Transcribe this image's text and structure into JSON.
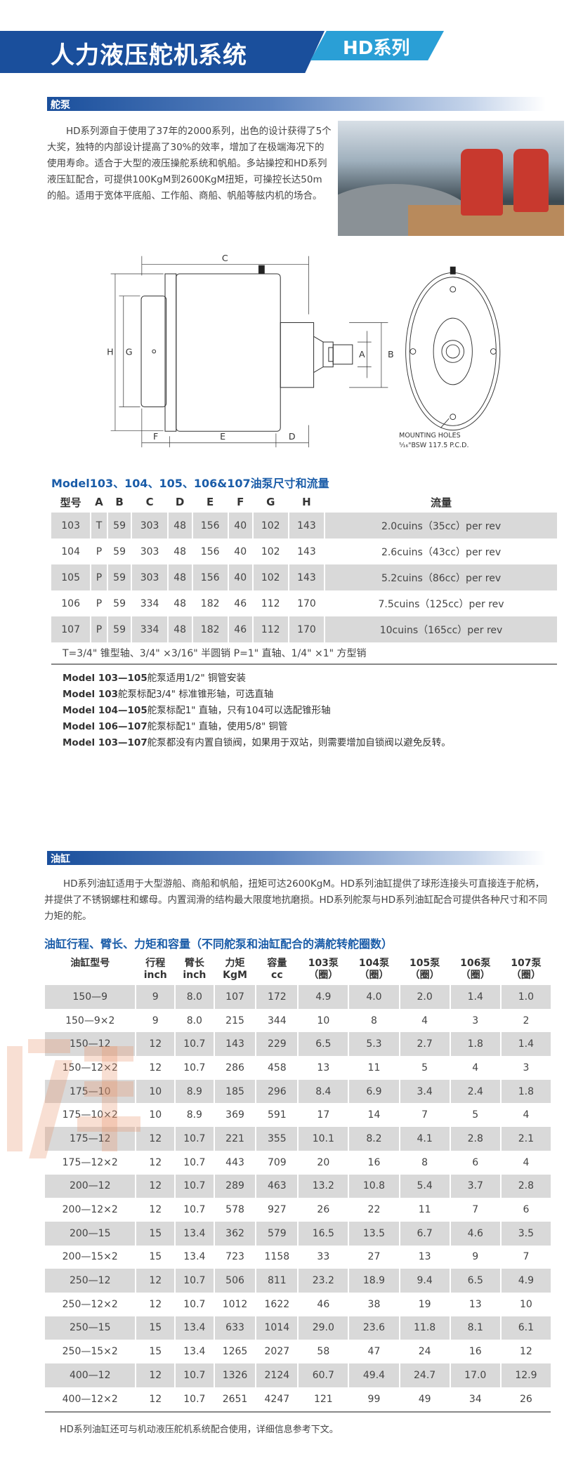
{
  "header": {
    "title": "人力液压舵机系统",
    "series": "HD系列"
  },
  "pump_section": {
    "heading": "舵泵",
    "paragraph": "HD系列源自于使用了37年的2000系列，出色的设计获得了5个大奖，独特的内部设计提高了30%的效率，增加了在极端海况下的使用寿命。适合于大型的液压操舵系统和帆船。多站操控和HD系列液压缸配合，可提供100KgM到2600KgM扭矩，可操控长达50m的船。适用于宽体平底船、工作船、商船、帆船等舷内机的场合。",
    "drawing": {
      "labels": [
        "C",
        "H",
        "G",
        "F",
        "E",
        "D",
        "A",
        "B"
      ],
      "mounting_note_1": "MOUNTING HOLES",
      "mounting_note_2": "⁵⁄₁₆\"BSW 117.5 P.C.D."
    },
    "table_title": "Model103、104、105、106&107油泵尺寸和流量",
    "table": {
      "headers": [
        "型号",
        "A",
        "B",
        "C",
        "D",
        "E",
        "F",
        "G",
        "H",
        "流量"
      ],
      "rows": [
        [
          "103",
          "T",
          "59",
          "303",
          "48",
          "156",
          "40",
          "102",
          "143",
          "2.0cuins（35cc）per rev"
        ],
        [
          "104",
          "P",
          "59",
          "303",
          "48",
          "156",
          "40",
          "102",
          "143",
          "2.6cuins（43cc）per rev"
        ],
        [
          "105",
          "P",
          "59",
          "303",
          "48",
          "156",
          "40",
          "102",
          "143",
          "5.2cuins（86cc）per rev"
        ],
        [
          "106",
          "P",
          "59",
          "334",
          "48",
          "182",
          "46",
          "112",
          "170",
          "7.5cuins（125cc）per rev"
        ],
        [
          "107",
          "P",
          "59",
          "334",
          "48",
          "182",
          "46",
          "112",
          "170",
          "10cuins（165cc）per rev"
        ]
      ]
    },
    "shaft_note": "T=3/4\" 锥型轴、3/4\" ×3/16\" 半圆销     P=1\" 直轴、1/4\" ×1\" 方型销",
    "model_notes": [
      {
        "model": "Model 103—105",
        "text": "舵泵适用1/2\" 铜管安装"
      },
      {
        "model": "Model 103",
        "text": "舵泵标配3/4\" 标准锥形轴，可选直轴"
      },
      {
        "model": "Model 104—105",
        "text": "舵泵标配1\" 直轴，只有104可以选配锥形轴"
      },
      {
        "model": "Model 106—107",
        "text": "舵泵标配1\" 直轴，使用5/8\" 铜管"
      },
      {
        "model": "Model 103—107",
        "text": "舵泵都没有内置自锁阀，如果用于双站，则需要增加自锁阀以避免反转。"
      }
    ]
  },
  "cylinder_section": {
    "heading": "油缸",
    "paragraph": "HD系列油缸适用于大型游船、商船和帆船，扭矩可达2600KgM。HD系列油缸提供了球形连接头可直接连于舵柄，并提供了不锈钢螺柱和螺母。内置润滑的结构最大限度地抗磨损。HD系列舵泵与HD系列油缸配合可提供各种尺寸和不同力矩的舵。",
    "table_title": "油缸行程、臂长、力矩和容量（不同舵泵和油缸配合的满舵转舵圈数）",
    "table": {
      "headers": [
        [
          "油缸型号",
          ""
        ],
        [
          "行程",
          "inch"
        ],
        [
          "臂长",
          "inch"
        ],
        [
          "力矩",
          "KgM"
        ],
        [
          "容量",
          "cc"
        ],
        [
          "103泵",
          "（圈）"
        ],
        [
          "104泵",
          "（圈）"
        ],
        [
          "105泵",
          "（圈）"
        ],
        [
          "106泵",
          "（圈）"
        ],
        [
          "107泵",
          "（圈）"
        ]
      ],
      "rows": [
        [
          "150—9",
          "9",
          "8.0",
          "107",
          "172",
          "4.9",
          "4.0",
          "2.0",
          "1.4",
          "1.0"
        ],
        [
          "150—9×2",
          "9",
          "8.0",
          "215",
          "344",
          "10",
          "8",
          "4",
          "3",
          "2"
        ],
        [
          "150—12",
          "12",
          "10.7",
          "143",
          "229",
          "6.5",
          "5.3",
          "2.7",
          "1.8",
          "1.4"
        ],
        [
          "150—12×2",
          "12",
          "10.7",
          "286",
          "458",
          "13",
          "11",
          "5",
          "4",
          "3"
        ],
        [
          "175—10",
          "10",
          "8.9",
          "185",
          "296",
          "8.4",
          "6.9",
          "3.4",
          "2.4",
          "1.8"
        ],
        [
          "175—10×2",
          "10",
          "8.9",
          "369",
          "591",
          "17",
          "14",
          "7",
          "5",
          "4"
        ],
        [
          "175—12",
          "12",
          "10.7",
          "221",
          "355",
          "10.1",
          "8.2",
          "4.1",
          "2.8",
          "2.1"
        ],
        [
          "175—12×2",
          "12",
          "10.7",
          "443",
          "709",
          "20",
          "16",
          "8",
          "6",
          "4"
        ],
        [
          "200—12",
          "12",
          "10.7",
          "289",
          "463",
          "13.2",
          "10.8",
          "5.4",
          "3.7",
          "2.8"
        ],
        [
          "200—12×2",
          "12",
          "10.7",
          "578",
          "927",
          "26",
          "22",
          "11",
          "7",
          "6"
        ],
        [
          "200—15",
          "15",
          "13.4",
          "362",
          "579",
          "16.5",
          "13.5",
          "6.7",
          "4.6",
          "3.5"
        ],
        [
          "200—15×2",
          "15",
          "13.4",
          "723",
          "1158",
          "33",
          "27",
          "13",
          "9",
          "7"
        ],
        [
          "250—12",
          "12",
          "10.7",
          "506",
          "811",
          "23.2",
          "18.9",
          "9.4",
          "6.5",
          "4.9"
        ],
        [
          "250—12×2",
          "12",
          "10.7",
          "1012",
          "1622",
          "46",
          "38",
          "19",
          "13",
          "10"
        ],
        [
          "250—15",
          "15",
          "13.4",
          "633",
          "1014",
          "29.0",
          "23.6",
          "11.8",
          "8.1",
          "6.1"
        ],
        [
          "250—15×2",
          "15",
          "13.4",
          "1265",
          "2027",
          "58",
          "47",
          "24",
          "16",
          "12"
        ],
        [
          "400—12",
          "12",
          "10.7",
          "1326",
          "2124",
          "60.7",
          "49.4",
          "24.7",
          "17.0",
          "12.9"
        ],
        [
          "400—12×2",
          "12",
          "10.7",
          "2651",
          "4247",
          "121",
          "99",
          "49",
          "34",
          "26"
        ]
      ]
    },
    "footnote": "HD系列油缸还可与机动液压舵机系统配合使用，详细信息参考下文。"
  },
  "watermark": "欧星 star",
  "colors": {
    "brand_blue": "#1a4f9c",
    "accent_blue": "#2a9fd6",
    "title_blue": "#1a5ca8",
    "row_shade": "#d9d9d9"
  }
}
